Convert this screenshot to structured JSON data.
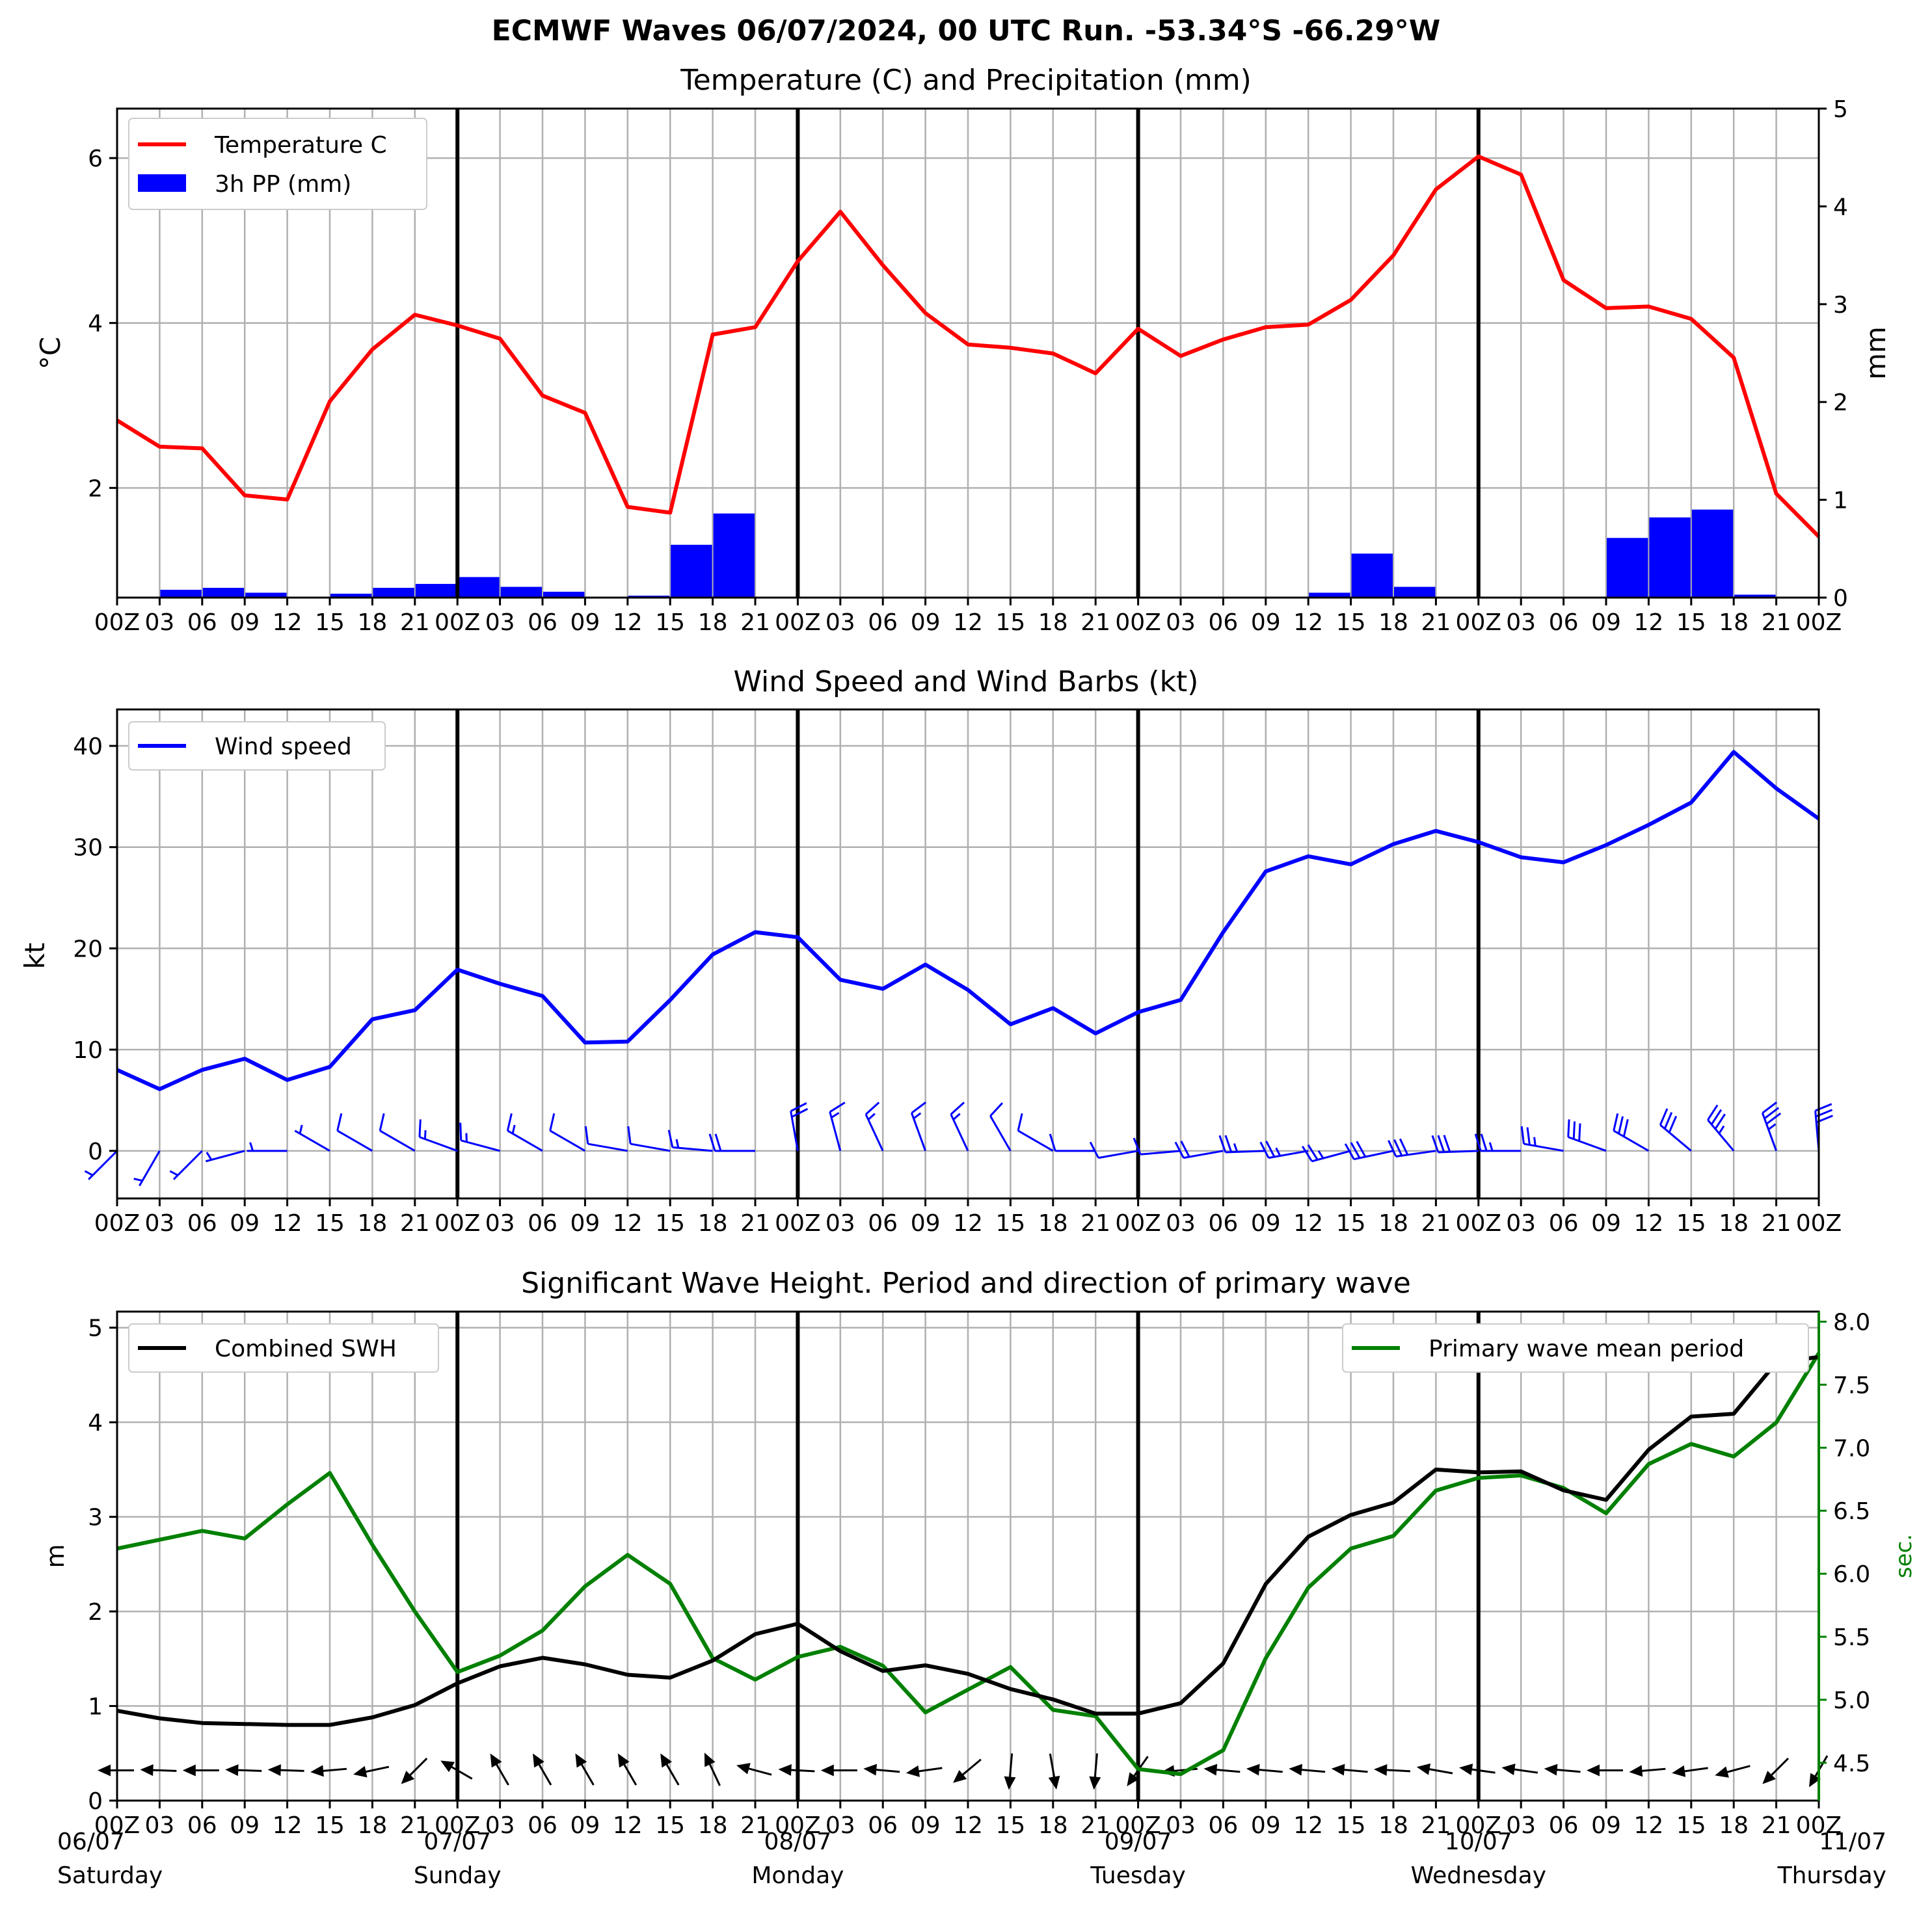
{
  "header": {
    "suptitle": "ECMWF Waves 06/07/2024, 00 UTC Run. -53.34°S -66.29°W"
  },
  "time_ticks": [
    "00Z",
    "03",
    "06",
    "09",
    "12",
    "15",
    "18",
    "21",
    "00Z",
    "03",
    "06",
    "09",
    "12",
    "15",
    "18",
    "21",
    "00Z",
    "03",
    "06",
    "09",
    "12",
    "15",
    "18",
    "21",
    "00Z",
    "03",
    "06",
    "09",
    "12",
    "15",
    "18",
    "21",
    "00Z",
    "03",
    "06",
    "09",
    "12",
    "15",
    "18",
    "21",
    "00Z"
  ],
  "day_labels": [
    {
      "date": "06/07",
      "day": "Saturday"
    },
    {
      "date": "07/07",
      "day": "Sunday"
    },
    {
      "date": "08/07",
      "day": "Monday"
    },
    {
      "date": "09/07",
      "day": "Tuesday"
    },
    {
      "date": "10/07",
      "day": "Wednesday"
    },
    {
      "date": "11/07",
      "day": "Thursday"
    }
  ],
  "chart_data": [
    {
      "type": "line",
      "title": "Temperature (C) and Precipitation (mm)",
      "ylabel": "°C",
      "ylabel_right": "mm",
      "ylim": [
        0.67,
        6.6
      ],
      "ylim_right": [
        0,
        5
      ],
      "yticks": [
        2,
        4,
        6
      ],
      "yticks_right": [
        0,
        1,
        2,
        3,
        4,
        5
      ],
      "grid": true,
      "legend_placement": "top-left",
      "series": [
        {
          "name": "Temperature C",
          "color": "#ff0000",
          "type": "line",
          "values": [
            2.82,
            2.5,
            2.48,
            1.91,
            1.86,
            3.05,
            3.68,
            4.1,
            3.97,
            3.81,
            3.12,
            2.91,
            1.77,
            1.7,
            3.86,
            3.95,
            4.75,
            5.35,
            4.7,
            4.12,
            3.74,
            3.7,
            3.63,
            3.39,
            3.93,
            3.6,
            3.8,
            3.95,
            3.98,
            4.28,
            4.82,
            5.62,
            6.02,
            5.8,
            4.52,
            4.18,
            4.2,
            4.05,
            3.58,
            1.93,
            1.41
          ]
        },
        {
          "name": "3h PP (mm)",
          "color": "#0000ff",
          "type": "bar",
          "values": [
            0.01,
            0.08,
            0.1,
            0.05,
            0.0,
            0.04,
            0.1,
            0.14,
            0.21,
            0.11,
            0.06,
            0.0,
            0.02,
            0.54,
            0.86,
            0.0,
            0.0,
            0.0,
            0.0,
            0.0,
            0.0,
            0.0,
            0.0,
            0.0,
            0.01,
            0.01,
            0.0,
            0.0,
            0.05,
            0.45,
            0.11,
            0.0,
            0.0,
            0.0,
            0.0,
            0.61,
            0.82,
            0.9,
            0.03,
            0.0
          ]
        }
      ]
    },
    {
      "type": "line",
      "title": "Wind Speed and Wind Barbs (kt)",
      "ylabel": "kt",
      "ylim": [
        -4.7,
        43.6
      ],
      "yticks": [
        0,
        10,
        20,
        30,
        40
      ],
      "grid": true,
      "legend_placement": "top-left",
      "series": [
        {
          "name": "Wind speed",
          "color": "#0000ff",
          "values": [
            8.0,
            6.1,
            8.0,
            9.1,
            7.0,
            8.3,
            13.0,
            13.9,
            17.9,
            16.5,
            15.3,
            10.7,
            10.8,
            14.9,
            19.4,
            21.6,
            21.1,
            16.9,
            16.0,
            18.4,
            15.9,
            12.5,
            14.1,
            11.6,
            13.7,
            14.9,
            21.6,
            27.6,
            29.1,
            28.3,
            30.3,
            31.6,
            30.5,
            29.0,
            28.5,
            30.2,
            32.2,
            34.4,
            39.4,
            35.8,
            32.8
          ]
        }
      ],
      "barb_direction_deg": [
        225,
        210,
        225,
        255,
        270,
        300,
        300,
        300,
        290,
        285,
        300,
        300,
        280,
        280,
        275,
        270,
        350,
        345,
        335,
        340,
        335,
        330,
        300,
        270,
        260,
        265,
        260,
        268,
        260,
        255,
        258,
        262,
        268,
        270,
        280,
        290,
        300,
        310,
        320,
        340,
        355
      ]
    },
    {
      "type": "line",
      "title": "Significant Wave Height. Period and direction of primary wave",
      "ylabel": "m",
      "ylabel_right": "sec.",
      "ylim": [
        0,
        5.17
      ],
      "ylim_right": [
        4.2,
        8.08
      ],
      "yticks": [
        0,
        1,
        2,
        3,
        4,
        5
      ],
      "yticks_right": [
        4.5,
        5.0,
        5.5,
        6.0,
        6.5,
        7.0,
        7.5,
        8.0
      ],
      "grid": true,
      "legend_placement": "top-left / top-right",
      "series": [
        {
          "name": "Combined SWH",
          "color": "#000000",
          "axis": "left",
          "values": [
            0.95,
            0.87,
            0.82,
            0.81,
            0.8,
            0.8,
            0.88,
            1.01,
            1.24,
            1.42,
            1.51,
            1.44,
            1.33,
            1.3,
            1.48,
            1.76,
            1.87,
            1.58,
            1.37,
            1.43,
            1.34,
            1.18,
            1.07,
            0.92,
            0.92,
            1.03,
            1.45,
            2.29,
            2.79,
            3.02,
            3.15,
            3.5,
            3.47,
            3.48,
            3.28,
            3.18,
            3.71,
            4.06,
            4.09,
            4.63,
            4.69
          ]
        },
        {
          "name": "Primary wave mean period",
          "color": "#008000",
          "axis": "right",
          "values": [
            6.2,
            6.27,
            6.34,
            6.28,
            6.55,
            6.8,
            6.23,
            5.7,
            5.22,
            5.35,
            5.55,
            5.9,
            6.15,
            5.92,
            5.33,
            5.16,
            5.34,
            5.42,
            5.27,
            4.9,
            5.08,
            5.26,
            4.92,
            4.87,
            4.45,
            4.41,
            4.6,
            5.33,
            5.89,
            6.2,
            6.3,
            6.66,
            6.76,
            6.78,
            6.68,
            6.48,
            6.87,
            7.03,
            6.93,
            7.2,
            7.75
          ]
        }
      ],
      "wave_direction_deg": [
        270,
        272,
        270,
        272,
        272,
        265,
        258,
        225,
        300,
        330,
        330,
        330,
        330,
        330,
        335,
        285,
        273,
        270,
        275,
        262,
        230,
        185,
        170,
        185,
        215,
        265,
        275,
        275,
        275,
        275,
        273,
        280,
        278,
        278,
        275,
        270,
        265,
        262,
        255,
        225,
        210
      ]
    }
  ]
}
